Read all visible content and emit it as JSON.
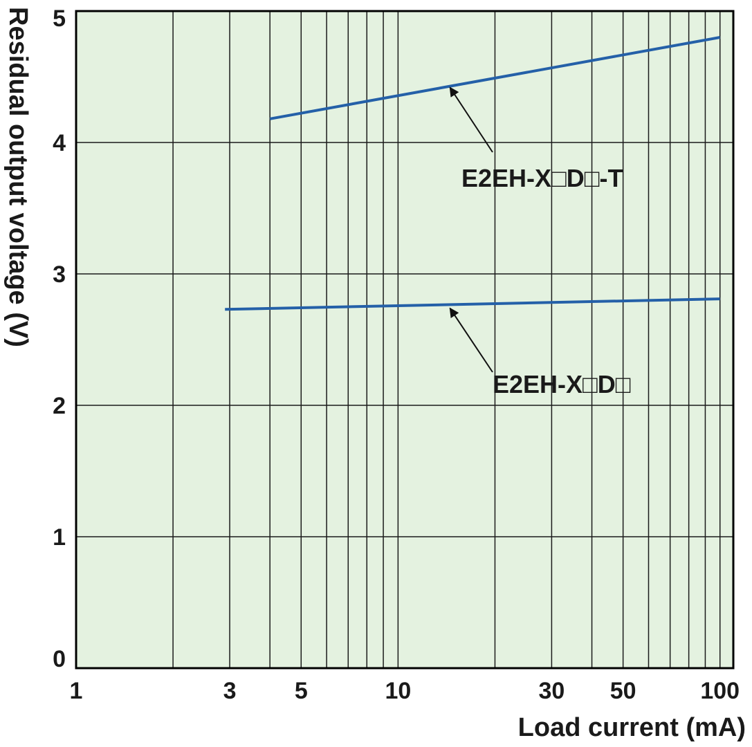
{
  "chart_data": {
    "type": "line",
    "title": "",
    "xlabel": "Load current (mA)",
    "ylabel": "Residual output voltage (V)",
    "xscale": "log",
    "xlim": [
      1,
      110
    ],
    "ylim": [
      0,
      5
    ],
    "grid": true,
    "x_ticks": [
      1,
      3,
      5,
      10,
      30,
      50,
      100
    ],
    "x_tick_labels": [
      "1",
      "3",
      "5",
      "10",
      "30",
      "50",
      "100"
    ],
    "y_ticks": [
      0,
      1,
      2,
      3,
      4,
      5
    ],
    "y_tick_labels": [
      "0",
      "1",
      "2",
      "3",
      "4",
      "5"
    ],
    "series": [
      {
        "name": "E2EH-X□D□-T",
        "x": [
          4,
          100
        ],
        "y": [
          4.18,
          4.8
        ]
      },
      {
        "name": "E2EH-X□D□",
        "x": [
          2.9,
          100
        ],
        "y": [
          2.73,
          2.81
        ]
      }
    ],
    "annotations": [
      {
        "text": "E2EH-X□D□-T",
        "points_to": {
          "x": 14.5,
          "y": 4.45
        }
      },
      {
        "text": "E2EH-X□D□",
        "points_to": {
          "x": 14.5,
          "y": 2.77
        }
      }
    ],
    "colors": {
      "background": "#e4f2e0",
      "line": "#2460a8",
      "grid": "#1a1a1a",
      "axis": "#000000"
    }
  }
}
